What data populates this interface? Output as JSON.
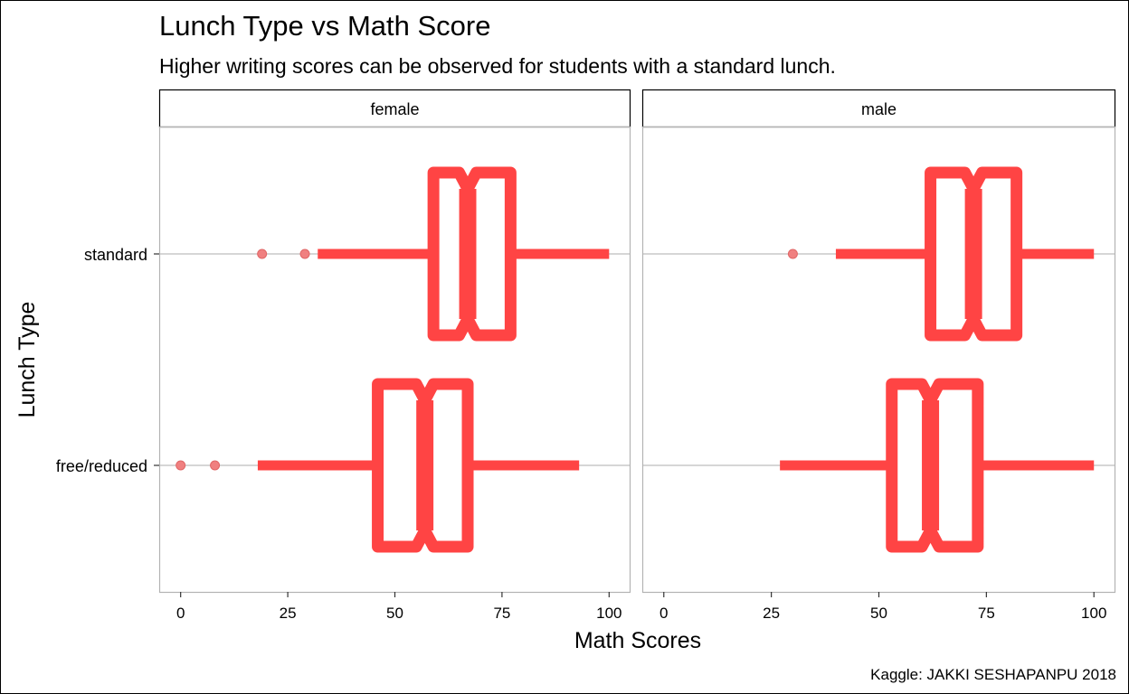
{
  "chart_data": {
    "type": "boxplot",
    "title": "Lunch Type vs Math Score",
    "subtitle": "Higher writing scores can be observed for students with a standard lunch.",
    "xlabel": "Math Scores",
    "ylabel": "Lunch Type",
    "caption": "Kaggle: JAKKI SESHAPANPU 2018",
    "xlim": [
      -5,
      105
    ],
    "x_ticks": [
      0,
      25,
      50,
      75,
      100
    ],
    "categories": [
      "standard",
      "free/reduced"
    ],
    "orientation": "horizontal",
    "notched": true,
    "colors": {
      "box": "#ff4444",
      "outlier": "#f08080",
      "gridline": "#bebebe",
      "panel_border": "#b3b3b3"
    },
    "panels": [
      {
        "label": "female",
        "boxes": [
          {
            "category": "standard",
            "whisker_low": 32,
            "q1": 59,
            "notch_low": 65,
            "median": 67,
            "notch_high": 69,
            "q3": 77,
            "whisker_high": 100,
            "outliers": [
              19,
              29
            ]
          },
          {
            "category": "free/reduced",
            "whisker_low": 18,
            "q1": 46,
            "notch_low": 55,
            "median": 57,
            "notch_high": 59,
            "q3": 67,
            "whisker_high": 93,
            "outliers": [
              0,
              8
            ]
          }
        ]
      },
      {
        "label": "male",
        "boxes": [
          {
            "category": "standard",
            "whisker_low": 40,
            "q1": 62,
            "notch_low": 70,
            "median": 72,
            "notch_high": 74,
            "q3": 82,
            "whisker_high": 100,
            "outliers": [
              30
            ]
          },
          {
            "category": "free/reduced",
            "whisker_low": 27,
            "q1": 53,
            "notch_low": 60,
            "median": 62,
            "notch_high": 64,
            "q3": 73,
            "whisker_high": 100,
            "outliers": []
          }
        ]
      }
    ]
  }
}
